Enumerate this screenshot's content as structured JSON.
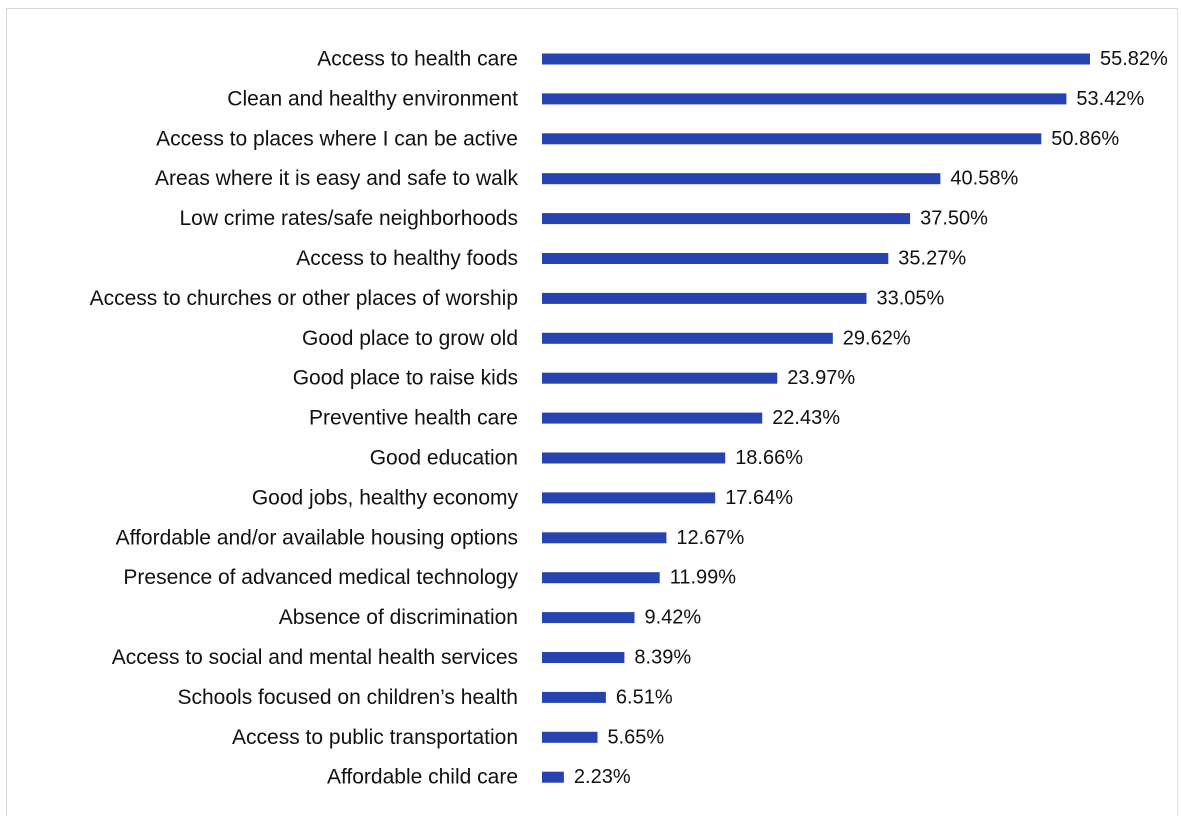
{
  "chart_data": {
    "type": "bar",
    "orientation": "horizontal",
    "title": "",
    "xlabel": "",
    "ylabel": "",
    "grid": false,
    "legend": "none",
    "xlim": [
      0,
      56
    ],
    "bar_color": "#2743b0",
    "categories": [
      "Access to health care",
      "Clean and healthy environment",
      "Access to places where I can be active",
      "Areas where it is easy and safe to walk",
      "Low crime rates/safe neighborhoods",
      "Access to healthy foods",
      "Access to churches or other places of worship",
      "Good place to grow old",
      "Good place to raise kids",
      "Preventive health care",
      "Good education",
      "Good jobs, healthy economy",
      "Affordable and/or available housing options",
      "Presence of advanced medical technology",
      "Absence of discrimination",
      "Access to social and mental health services",
      "Schools focused on children’s health",
      "Access to public transportation",
      "Affordable child care"
    ],
    "values": [
      55.82,
      53.42,
      50.86,
      40.58,
      37.5,
      35.27,
      33.05,
      29.62,
      23.97,
      22.43,
      18.66,
      17.64,
      12.67,
      11.99,
      9.42,
      8.39,
      6.51,
      5.65,
      2.23
    ],
    "value_labels": [
      "55.82%",
      "53.42%",
      "50.86%",
      "40.58%",
      "37.50%",
      "35.27%",
      "33.05%",
      "29.62%",
      "23.97%",
      "22.43%",
      "18.66%",
      "17.64%",
      "12.67%",
      "11.99%",
      "9.42%",
      "8.39%",
      "6.51%",
      "5.65%",
      "2.23%"
    ]
  }
}
